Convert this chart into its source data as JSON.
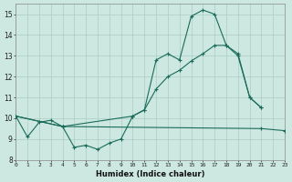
{
  "xlabel": "Humidex (Indice chaleur)",
  "background_color": "#cce8e0",
  "grid_color": "#aaccc4",
  "line_color": "#1a6b5a",
  "xlim": [
    0,
    23
  ],
  "ylim": [
    8.0,
    15.5
  ],
  "yticks": [
    8,
    9,
    10,
    11,
    12,
    13,
    14,
    15
  ],
  "xticks": [
    0,
    1,
    2,
    3,
    4,
    5,
    6,
    7,
    8,
    9,
    10,
    11,
    12,
    13,
    14,
    15,
    16,
    17,
    18,
    19,
    20,
    21,
    22,
    23
  ],
  "line1_x": [
    0,
    1,
    2,
    3,
    4,
    5,
    6,
    7,
    8,
    9,
    10,
    11,
    12,
    13,
    14,
    15,
    16,
    17,
    18,
    19,
    20,
    21
  ],
  "line1_y": [
    10.1,
    9.1,
    9.8,
    9.9,
    9.6,
    8.6,
    8.7,
    8.5,
    8.8,
    9.0,
    10.1,
    10.4,
    12.8,
    13.1,
    12.8,
    14.9,
    15.2,
    15.0,
    13.5,
    13.1,
    11.0,
    10.5
  ],
  "line2_x": [
    0,
    4,
    21,
    23
  ],
  "line2_y": [
    10.1,
    9.6,
    9.5,
    9.4
  ],
  "line3_x": [
    0,
    4,
    10,
    11,
    12,
    13,
    14,
    15,
    16,
    17,
    18,
    19,
    20,
    21
  ],
  "line3_y": [
    10.1,
    9.6,
    10.1,
    10.4,
    11.4,
    12.0,
    12.3,
    12.75,
    13.1,
    13.5,
    13.5,
    13.0,
    11.0,
    10.5
  ]
}
